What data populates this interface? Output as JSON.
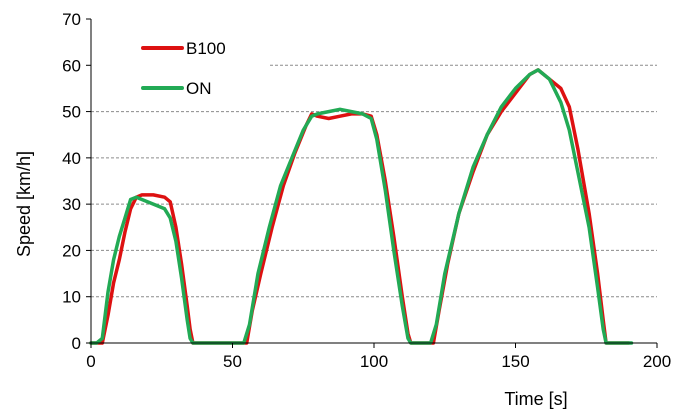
{
  "chart_data": {
    "type": "line",
    "title": "",
    "xlabel": "Time [s]",
    "ylabel": "Speed [km/h]",
    "xlim": [
      0,
      200
    ],
    "ylim": [
      0,
      70
    ],
    "xticks": [
      0,
      50,
      100,
      150,
      200
    ],
    "yticks": [
      0,
      10,
      20,
      30,
      40,
      50,
      60,
      70
    ],
    "grid": "horizontal dashed",
    "legend_position": "top-left",
    "series": [
      {
        "name": "B100",
        "color": "#dd1111",
        "points": [
          [
            0,
            0
          ],
          [
            4,
            0
          ],
          [
            6,
            6
          ],
          [
            8,
            13
          ],
          [
            10,
            18
          ],
          [
            12,
            24
          ],
          [
            14,
            29
          ],
          [
            16,
            31.5
          ],
          [
            18,
            32
          ],
          [
            22,
            32
          ],
          [
            26,
            31.5
          ],
          [
            28,
            30.5
          ],
          [
            30,
            25
          ],
          [
            32,
            17
          ],
          [
            34,
            8
          ],
          [
            35,
            3
          ],
          [
            36,
            0
          ],
          [
            55,
            0
          ],
          [
            57,
            7
          ],
          [
            60,
            15
          ],
          [
            64,
            25
          ],
          [
            68,
            34
          ],
          [
            72,
            41
          ],
          [
            76,
            47
          ],
          [
            78,
            49.5
          ],
          [
            80,
            49
          ],
          [
            84,
            48.5
          ],
          [
            88,
            49
          ],
          [
            92,
            49.5
          ],
          [
            96,
            49.5
          ],
          [
            99,
            49
          ],
          [
            101,
            45
          ],
          [
            104,
            35
          ],
          [
            107,
            23
          ],
          [
            110,
            10
          ],
          [
            112,
            2
          ],
          [
            113,
            0
          ],
          [
            121,
            0
          ],
          [
            123,
            7
          ],
          [
            126,
            17
          ],
          [
            130,
            28
          ],
          [
            135,
            37
          ],
          [
            140,
            45
          ],
          [
            145,
            50
          ],
          [
            150,
            54
          ],
          [
            155,
            58
          ],
          [
            158,
            59
          ],
          [
            162,
            57
          ],
          [
            166,
            55
          ],
          [
            169,
            51
          ],
          [
            172,
            42
          ],
          [
            176,
            28
          ],
          [
            179,
            15
          ],
          [
            181,
            5
          ],
          [
            182,
            0
          ],
          [
            190,
            0
          ]
        ]
      },
      {
        "name": "ON",
        "color": "#22aa55",
        "points": [
          [
            0,
            0
          ],
          [
            2,
            0
          ],
          [
            4,
            1
          ],
          [
            6,
            11
          ],
          [
            8,
            18
          ],
          [
            10,
            23
          ],
          [
            12,
            27
          ],
          [
            14,
            31
          ],
          [
            16,
            31.5
          ],
          [
            18,
            31
          ],
          [
            22,
            30
          ],
          [
            26,
            29
          ],
          [
            28,
            27
          ],
          [
            30,
            22
          ],
          [
            32,
            14
          ],
          [
            34,
            5
          ],
          [
            35,
            1
          ],
          [
            36,
            0
          ],
          [
            54,
            0
          ],
          [
            56,
            4
          ],
          [
            59,
            15
          ],
          [
            63,
            25
          ],
          [
            67,
            34
          ],
          [
            71,
            40
          ],
          [
            75,
            46
          ],
          [
            78,
            49
          ],
          [
            80,
            49.5
          ],
          [
            84,
            50
          ],
          [
            88,
            50.5
          ],
          [
            92,
            50
          ],
          [
            96,
            49.5
          ],
          [
            99,
            48.5
          ],
          [
            101,
            44
          ],
          [
            104,
            33
          ],
          [
            107,
            20
          ],
          [
            110,
            8
          ],
          [
            112,
            1
          ],
          [
            113,
            0
          ],
          [
            120,
            0
          ],
          [
            122,
            4
          ],
          [
            125,
            15
          ],
          [
            130,
            28
          ],
          [
            135,
            38
          ],
          [
            140,
            45
          ],
          [
            145,
            51
          ],
          [
            150,
            55
          ],
          [
            155,
            58
          ],
          [
            158,
            59
          ],
          [
            162,
            57
          ],
          [
            166,
            52
          ],
          [
            169,
            46
          ],
          [
            172,
            37
          ],
          [
            176,
            25
          ],
          [
            179,
            12
          ],
          [
            181,
            3
          ],
          [
            182,
            0
          ],
          [
            191,
            0
          ]
        ]
      }
    ]
  }
}
